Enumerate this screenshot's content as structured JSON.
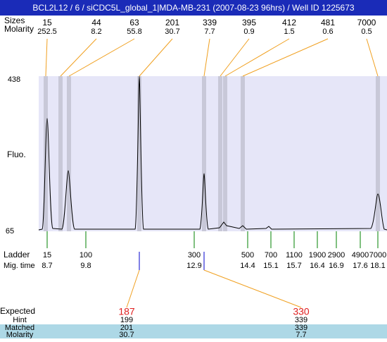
{
  "header": {
    "title": "BCL2L12 / 6 / siCDC5L_global_1|MDA-MB-231 (2007-08-23 96hrs) / Well ID 1225673"
  },
  "sizes_label": "Sizes",
  "molarity_label": "Molarity",
  "peaks": [
    {
      "size": 15,
      "molarity": 252.5
    },
    {
      "size": 44,
      "molarity": 8.2
    },
    {
      "size": 63,
      "molarity": 55.8
    },
    {
      "size": 201,
      "molarity": 30.7
    },
    {
      "size": 339,
      "molarity": 7.7
    },
    {
      "size": 395,
      "molarity": 0.9
    },
    {
      "size": 412,
      "molarity": 1.5
    },
    {
      "size": 481,
      "molarity": 0.6
    },
    {
      "size": 7000,
      "molarity": 0.5
    }
  ],
  "y_axis": {
    "top": 438,
    "bottom": 65,
    "label": "Fluo."
  },
  "ladder": {
    "label": "Ladder",
    "mig_label": "Mig. time",
    "items": [
      {
        "size": 15,
        "mig": 8.7
      },
      {
        "size": 100,
        "mig": 9.8
      },
      {
        "size": 300,
        "mig": 12.9
      },
      {
        "size": 500,
        "mig": 14.4
      },
      {
        "size": 700,
        "mig": 15.1
      },
      {
        "size": 1100,
        "mig": 15.7
      },
      {
        "size": 1900,
        "mig": 16.4
      },
      {
        "size": 2900,
        "mig": 16.9
      },
      {
        "size": 4900,
        "mig": 17.6
      },
      {
        "size": 7000,
        "mig": 18.1
      }
    ]
  },
  "expected": {
    "label": "Expected",
    "hint_label": "Hint",
    "matched_label": "Matched",
    "molarity_label": "Molarity",
    "items": [
      {
        "expected": 187,
        "hint": 199,
        "matched": 201,
        "molarity": 30.7
      },
      {
        "expected": 330,
        "hint": 339,
        "matched": 339,
        "molarity": 7.7
      }
    ]
  }
}
